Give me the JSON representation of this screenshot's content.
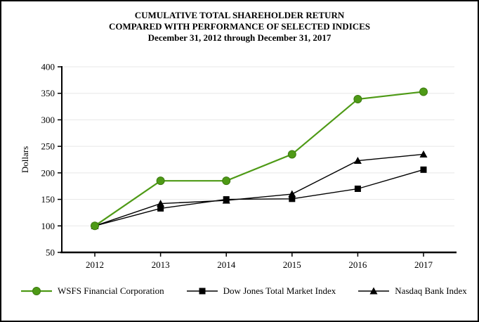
{
  "title": {
    "line1": "CUMULATIVE TOTAL SHAREHOLDER RETURN",
    "line2": "COMPARED WITH PERFORMANCE OF SELECTED INDICES",
    "line3": "December 31, 2012 through December 31, 2017"
  },
  "chart_data": {
    "type": "line",
    "categories": [
      "2012",
      "2013",
      "2014",
      "2015",
      "2016",
      "2017"
    ],
    "series": [
      {
        "name": "WSFS Financial Corporation",
        "marker": "circle",
        "color": "#4e9a16",
        "marker_stroke": "#3c7a10",
        "line_width": 2.2,
        "values": [
          100,
          185,
          185,
          235,
          339,
          353
        ]
      },
      {
        "name": "Dow Jones Total Market Index",
        "marker": "square",
        "color": "#000000",
        "marker_stroke": "#000000",
        "line_width": 1.4,
        "values": [
          100,
          133,
          150,
          151,
          170,
          206
        ]
      },
      {
        "name": "Nasdaq Bank Index",
        "marker": "triangle",
        "color": "#000000",
        "marker_stroke": "#000000",
        "line_width": 1.4,
        "values": [
          100,
          142,
          148,
          160,
          223,
          235
        ]
      }
    ],
    "title": "CUMULATIVE TOTAL SHAREHOLDER RETURN — COMPARED WITH PERFORMANCE OF SELECTED INDICES — December 31, 2012 through December 31, 2017",
    "xlabel": "",
    "ylabel": "Dollars",
    "ylim": [
      50,
      400
    ],
    "yticks": [
      400,
      350,
      300,
      250,
      200,
      150,
      100,
      50
    ],
    "grid": true,
    "gridline_color": "#e7e7e7",
    "axis_color": "#000000",
    "legend_position": "bottom"
  }
}
